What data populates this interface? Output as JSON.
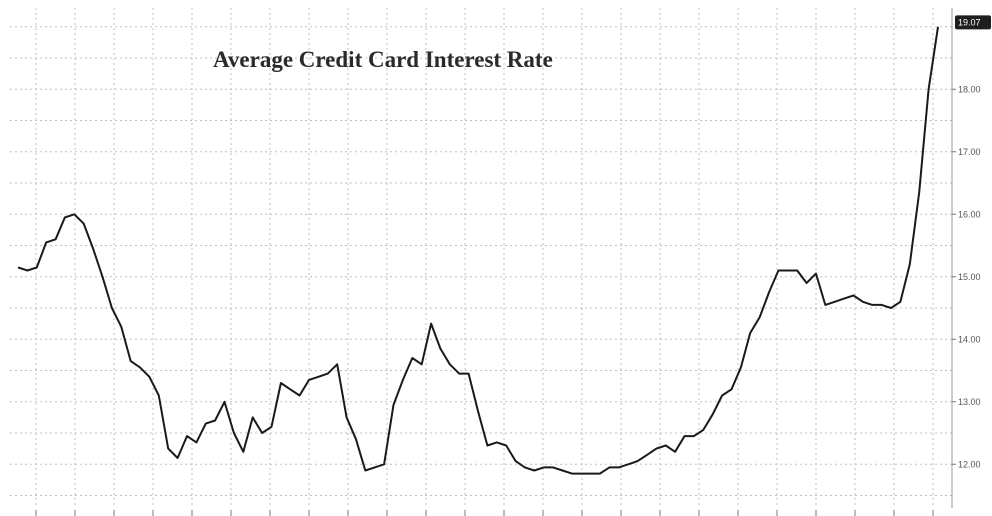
{
  "chart_data": {
    "type": "line",
    "title": "Average Credit Card Interest Rate",
    "xlabel": "",
    "ylabel": "",
    "ylim": [
      11.3,
      19.3
    ],
    "y_ticks": [
      "12.00",
      "13.00",
      "14.00",
      "15.00",
      "16.00",
      "17.00",
      "18.00"
    ],
    "last_value_label": "19.07",
    "grid": true,
    "legend": "none",
    "line_color": "#1a1a1a",
    "grid_color": "#bfbfbf",
    "series": [
      {
        "values": [
          15.15,
          15.1,
          15.15,
          15.55,
          15.6,
          15.95,
          16.0,
          15.85,
          15.45,
          15.0,
          14.5,
          14.2,
          13.65,
          13.55,
          13.4,
          13.1,
          12.25,
          12.1,
          12.45,
          12.35,
          12.65,
          12.7,
          13.0,
          12.5,
          12.2,
          12.75,
          12.5,
          12.6,
          13.3,
          13.2,
          13.1,
          13.35,
          13.4,
          13.45,
          13.6,
          12.75,
          12.4,
          11.9,
          11.95,
          12.0,
          12.95,
          13.35,
          13.7,
          13.6,
          14.25,
          13.85,
          13.6,
          13.45,
          13.45,
          12.85,
          12.3,
          12.35,
          12.3,
          12.05,
          11.95,
          11.9,
          11.95,
          11.95,
          11.9,
          11.85,
          11.85,
          11.85,
          11.85,
          11.95,
          11.95,
          12.0,
          12.05,
          12.15,
          12.25,
          12.3,
          12.2,
          12.45,
          12.45,
          12.55,
          12.8,
          13.1,
          13.2,
          13.55,
          14.1,
          14.35,
          14.75,
          15.1,
          15.1,
          15.1,
          14.9,
          15.05,
          14.55,
          14.6,
          14.65,
          14.7,
          14.6,
          14.55,
          14.55,
          14.5,
          14.6,
          15.2,
          16.35,
          18.0,
          19.0
        ]
      }
    ]
  }
}
